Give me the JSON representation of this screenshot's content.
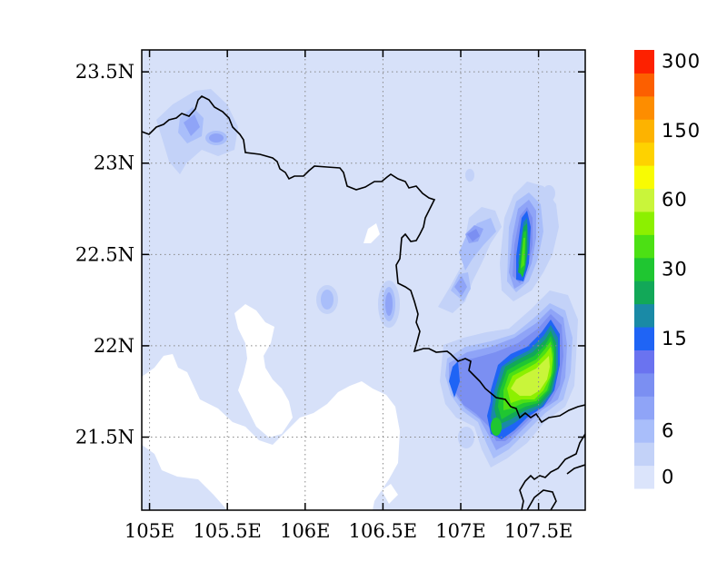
{
  "map": {
    "x_axis": {
      "range": [
        104.95,
        107.8
      ],
      "ticks": [
        {
          "value": 105.0,
          "label": "105E"
        },
        {
          "value": 105.5,
          "label": "105.5E"
        },
        {
          "value": 106.0,
          "label": "106E"
        },
        {
          "value": 106.5,
          "label": "106.5E"
        },
        {
          "value": 107.0,
          "label": "107E"
        },
        {
          "value": 107.5,
          "label": "107.5E"
        }
      ]
    },
    "y_axis": {
      "range": [
        21.1,
        23.62
      ],
      "ticks": [
        {
          "value": 21.5,
          "label": "21.5N"
        },
        {
          "value": 22.0,
          "label": "22N"
        },
        {
          "value": 22.5,
          "label": "22.5N"
        },
        {
          "value": 23.0,
          "label": "23N"
        },
        {
          "value": 23.5,
          "label": "23.5N"
        }
      ]
    },
    "grid": true,
    "background_color": "#d7e1f9",
    "border_color": "#000000"
  },
  "colorbar": {
    "colors": [
      "#dbe4fb",
      "#c3d2f8",
      "#a9befa",
      "#8fa4f7",
      "#7b8ff2",
      "#6a73f0",
      "#1f64f5",
      "#1a8aa6",
      "#12a858",
      "#1fc631",
      "#4ce014",
      "#8cf000",
      "#c9f53a",
      "#f8fb03",
      "#fed200",
      "#fdb300",
      "#fd8d00",
      "#fc5f00",
      "#fd2100"
    ],
    "labels": [
      {
        "at_color_index": 0,
        "text": "0"
      },
      {
        "at_color_index": 2,
        "text": "6"
      },
      {
        "at_color_index": 6,
        "text": "15"
      },
      {
        "at_color_index": 9,
        "text": "30"
      },
      {
        "at_color_index": 12,
        "text": "60"
      },
      {
        "at_color_index": 15,
        "text": "150"
      },
      {
        "at_color_index": 18,
        "text": "300"
      }
    ]
  }
}
